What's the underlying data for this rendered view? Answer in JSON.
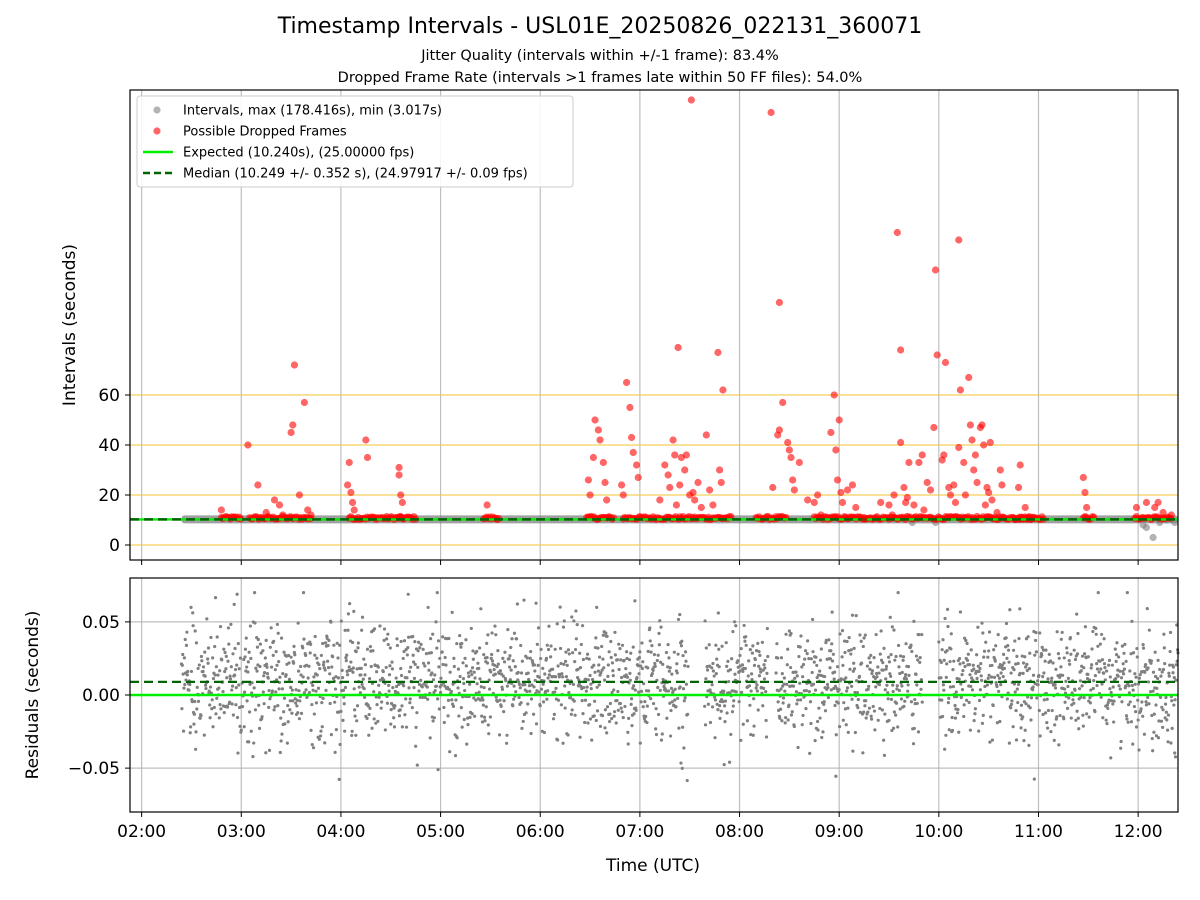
{
  "chart_data": [
    {
      "type": "scatter",
      "title": "Timestamp Intervals - USL01E_20250826_022131_360071",
      "subtitles": [
        "Jitter Quality (intervals within +/-1 frame): 83.4%",
        "Dropped Frame Rate (intervals >1 frames late within 50 FF files): 54.0%"
      ],
      "ylabel": "Intervals (seconds)",
      "ylim": [
        -6,
        182
      ],
      "yticks": [
        0,
        20,
        40,
        60
      ],
      "xlim": [
        "01:53",
        "12:24"
      ],
      "hlines": [
        0,
        20,
        40,
        60
      ],
      "hline_color": "#f7c948",
      "legend_position": "top-left",
      "legend": [
        "Intervals, max (178.416s), min (3.017s)",
        "Possible Dropped Frames",
        "Expected (10.240s), (25.00000 fps)",
        "Median (10.249 +/- 0.352 s), (24.97917 +/- 0.09 fps)"
      ],
      "expected_interval": 10.24,
      "median_interval": 10.249,
      "series": [
        {
          "name": "Possible Dropped Frames",
          "color": "#ff0000",
          "points": [
            [
              "02:48",
              14
            ],
            [
              "03:04",
              40
            ],
            [
              "03:10",
              24
            ],
            [
              "03:15",
              13
            ],
            [
              "03:20",
              18
            ],
            [
              "03:23",
              16
            ],
            [
              "03:25",
              12
            ],
            [
              "03:30",
              45
            ],
            [
              "03:31",
              48
            ],
            [
              "03:32",
              72
            ],
            [
              "03:35",
              20
            ],
            [
              "03:38",
              57
            ],
            [
              "03:40",
              14
            ],
            [
              "03:42",
              12
            ],
            [
              "04:04",
              24
            ],
            [
              "04:05",
              33
            ],
            [
              "04:06",
              21
            ],
            [
              "04:07",
              17
            ],
            [
              "04:08",
              14
            ],
            [
              "04:15",
              42
            ],
            [
              "04:16",
              35
            ],
            [
              "04:35",
              31
            ],
            [
              "04:35",
              28
            ],
            [
              "04:36",
              20
            ],
            [
              "04:37",
              17
            ],
            [
              "05:28",
              16
            ],
            [
              "06:29",
              26
            ],
            [
              "06:30",
              20
            ],
            [
              "06:32",
              35
            ],
            [
              "06:33",
              50
            ],
            [
              "06:35",
              46
            ],
            [
              "06:36",
              42
            ],
            [
              "06:38",
              33
            ],
            [
              "06:39",
              25
            ],
            [
              "06:40",
              18
            ],
            [
              "06:49",
              24
            ],
            [
              "06:50",
              20
            ],
            [
              "06:52",
              65
            ],
            [
              "06:54",
              55
            ],
            [
              "06:55",
              43
            ],
            [
              "06:56",
              37
            ],
            [
              "06:58",
              32
            ],
            [
              "06:59",
              27
            ],
            [
              "07:12",
              18
            ],
            [
              "07:15",
              32
            ],
            [
              "07:17",
              28
            ],
            [
              "07:18",
              23
            ],
            [
              "07:20",
              42
            ],
            [
              "07:21",
              36
            ],
            [
              "07:22",
              16
            ],
            [
              "07:23",
              79
            ],
            [
              "07:24",
              24
            ],
            [
              "07:25",
              35
            ],
            [
              "07:27",
              30
            ],
            [
              "07:28",
              36
            ],
            [
              "07:30",
              20
            ],
            [
              "07:32",
              21
            ],
            [
              "07:33",
              18
            ],
            [
              "07:35",
              25
            ],
            [
              "07:37",
              15
            ],
            [
              "07:40",
              44
            ],
            [
              "07:42",
              22
            ],
            [
              "07:44",
              16
            ],
            [
              "07:48",
              30
            ],
            [
              "07:49",
              25
            ],
            [
              "07:50",
              62
            ],
            [
              "08:20",
              23
            ],
            [
              "08:23",
              44
            ],
            [
              "08:24",
              46
            ],
            [
              "08:26",
              57
            ],
            [
              "08:29",
              41
            ],
            [
              "08:30",
              38
            ],
            [
              "08:31",
              35
            ],
            [
              "08:32",
              26
            ],
            [
              "08:33",
              22
            ],
            [
              "08:36",
              33
            ],
            [
              "08:41",
              18
            ],
            [
              "08:45",
              17
            ],
            [
              "08:47",
              20
            ],
            [
              "08:49",
              12
            ],
            [
              "08:55",
              45
            ],
            [
              "08:57",
              60
            ],
            [
              "08:58",
              38
            ],
            [
              "08:59",
              26
            ],
            [
              "09:00",
              50
            ],
            [
              "09:01",
              21
            ],
            [
              "09:02",
              17
            ],
            [
              "09:05",
              22
            ],
            [
              "09:08",
              24
            ],
            [
              "09:10",
              15
            ],
            [
              "09:15",
              11
            ],
            [
              "09:25",
              17
            ],
            [
              "09:30",
              16
            ],
            [
              "09:32",
              12
            ],
            [
              "09:33",
              20
            ],
            [
              "09:37",
              41
            ],
            [
              "09:39",
              23
            ],
            [
              "09:40",
              17
            ],
            [
              "09:41",
              19
            ],
            [
              "09:42",
              33
            ],
            [
              "09:45",
              16
            ],
            [
              "09:48",
              33
            ],
            [
              "09:50",
              36
            ],
            [
              "09:51",
              14
            ],
            [
              "09:53",
              25
            ],
            [
              "09:55",
              22
            ],
            [
              "09:57",
              47
            ],
            [
              "09:59",
              76
            ],
            [
              "10:02",
              34
            ],
            [
              "10:03",
              36
            ],
            [
              "10:04",
              73
            ],
            [
              "10:06",
              23
            ],
            [
              "10:07",
              20
            ],
            [
              "10:09",
              24
            ],
            [
              "10:10",
              17
            ],
            [
              "10:12",
              39
            ],
            [
              "10:13",
              62
            ],
            [
              "10:15",
              33
            ],
            [
              "10:16",
              20
            ],
            [
              "10:18",
              67
            ],
            [
              "10:19",
              48
            ],
            [
              "10:20",
              42
            ],
            [
              "10:21",
              30
            ],
            [
              "10:22",
              36
            ],
            [
              "10:23",
              25
            ],
            [
              "10:25",
              47
            ],
            [
              "10:26",
              48
            ],
            [
              "10:27",
              40
            ],
            [
              "10:28",
              16
            ],
            [
              "10:29",
              23
            ],
            [
              "10:30",
              21
            ],
            [
              "10:31",
              41
            ],
            [
              "10:32",
              18
            ],
            [
              "10:35",
              13
            ],
            [
              "10:37",
              30
            ],
            [
              "10:38",
              24
            ],
            [
              "10:48",
              23
            ],
            [
              "10:49",
              32
            ],
            [
              "10:52",
              15
            ],
            [
              "11:27",
              27
            ],
            [
              "11:28",
              21
            ],
            [
              "11:29",
              15
            ],
            [
              "11:59",
              15
            ],
            [
              "12:05",
              17
            ],
            [
              "12:10",
              15
            ],
            [
              "12:12",
              17
            ],
            [
              "12:15",
              13
            ],
            [
              "12:20",
              12
            ],
            [
              "07:31",
              178
            ],
            [
              "08:19",
              173
            ],
            [
              "09:35",
              125
            ],
            [
              "10:12",
              122
            ],
            [
              "09:58",
              110
            ],
            [
              "08:24",
              97
            ],
            [
              "09:37",
              78
            ],
            [
              "07:47",
              77
            ]
          ]
        },
        {
          "name": "Intervals, max (178.416s), min (3.017s)",
          "color": "#808080",
          "points": [
            [
              "12:03",
              8
            ],
            [
              "12:05",
              7
            ],
            [
              "12:09",
              3
            ],
            [
              "12:13",
              9
            ],
            [
              "12:17",
              10
            ],
            [
              "12:22",
              9
            ],
            [
              "09:44",
              9
            ],
            [
              "09:58",
              9
            ]
          ]
        }
      ],
      "dropped_frame_dense_ranges": [
        [
          "02:48",
          "03:00"
        ],
        [
          "03:05",
          "03:42"
        ],
        [
          "04:05",
          "04:38"
        ],
        [
          "04:35",
          "04:45"
        ],
        [
          "05:26",
          "05:35"
        ],
        [
          "06:28",
          "06:45"
        ],
        [
          "06:50",
          "07:55"
        ],
        [
          "08:10",
          "08:28"
        ],
        [
          "08:45",
          "10:58"
        ],
        [
          "10:45",
          "11:03"
        ],
        [
          "11:27",
          "11:34"
        ],
        [
          "11:58",
          "12:20"
        ]
      ],
      "interval_band_range": [
        "02:24",
        "12:24"
      ]
    },
    {
      "type": "scatter",
      "ylabel": "Residuals (seconds)",
      "xlabel": "Time (UTC)",
      "ylim": [
        -0.08,
        0.08
      ],
      "yticks": [
        "0.05",
        "0.00",
        "−0.05"
      ],
      "xticks": [
        "02:00",
        "03:00",
        "04:00",
        "05:00",
        "06:00",
        "07:00",
        "08:00",
        "09:00",
        "10:00",
        "11:00",
        "12:00"
      ],
      "xlim": [
        "01:53",
        "12:24"
      ],
      "expected_line": 0.0,
      "median_line": 0.009,
      "residual_spread": [
        -0.06,
        0.07
      ],
      "point_color": "#808080"
    }
  ],
  "colors": {
    "dropped": "#ff0000",
    "interval": "#808080",
    "expected": "#00ee00",
    "median": "#006400",
    "threshold": "#f7c948",
    "grid": "#b0b0b0"
  }
}
